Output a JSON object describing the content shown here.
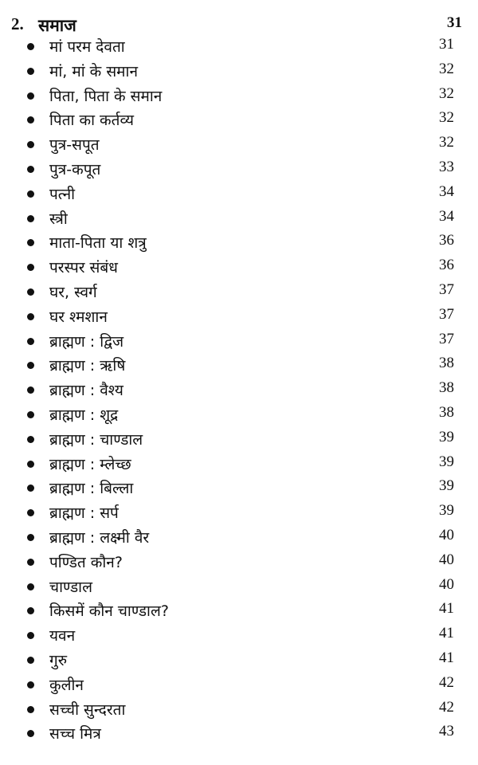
{
  "section": {
    "number": "2.",
    "title": "समाज",
    "page": "31"
  },
  "items": [
    {
      "label": "मां परम देवता",
      "page": "31"
    },
    {
      "label": "मां, मां के समान",
      "page": "32"
    },
    {
      "label": "पिता, पिता के समान",
      "page": "32"
    },
    {
      "label": "पिता का कर्तव्य",
      "page": "32"
    },
    {
      "label": "पुत्र-सपूत",
      "page": "32"
    },
    {
      "label": "पुत्र-कपूत",
      "page": "33"
    },
    {
      "label": "पत्नी",
      "page": "34"
    },
    {
      "label": "स्त्री",
      "page": "34"
    },
    {
      "label": "माता-पिता या शत्रु",
      "page": "36"
    },
    {
      "label": "परस्पर संबंध",
      "page": "36"
    },
    {
      "label": "घर, स्वर्ग",
      "page": "37"
    },
    {
      "label": "घर श्मशान",
      "page": "37"
    },
    {
      "label": "ब्राह्मण : द्विज",
      "page": "37"
    },
    {
      "label": "ब्राह्मण : ऋषि",
      "page": "38"
    },
    {
      "label": "ब्राह्मण : वैश्य",
      "page": "38"
    },
    {
      "label": "ब्राह्मण  : शूद्र",
      "page": "38"
    },
    {
      "label": "ब्राह्मण : चाण्डाल",
      "page": "39"
    },
    {
      "label": "ब्राह्मण : म्लेच्छ",
      "page": "39"
    },
    {
      "label": "ब्राह्मण : बिल्ला",
      "page": "39"
    },
    {
      "label": "ब्राह्मण : सर्प",
      "page": "39"
    },
    {
      "label": "ब्राह्मण : लक्ष्मी वैर",
      "page": "40"
    },
    {
      "label": "पण्डित कौन?",
      "page": "40"
    },
    {
      "label": "चाण्डाल",
      "page": "40"
    },
    {
      "label": "किसमें कौन चाण्डाल?",
      "page": "41"
    },
    {
      "label": "यवन",
      "page": "41"
    },
    {
      "label": "गुरु",
      "page": "41"
    },
    {
      "label": "कुलीन",
      "page": "42"
    },
    {
      "label": "सच्ची सुन्दरता",
      "page": "42"
    },
    {
      "label": "सच्च मित्र",
      "page": "43"
    }
  ]
}
